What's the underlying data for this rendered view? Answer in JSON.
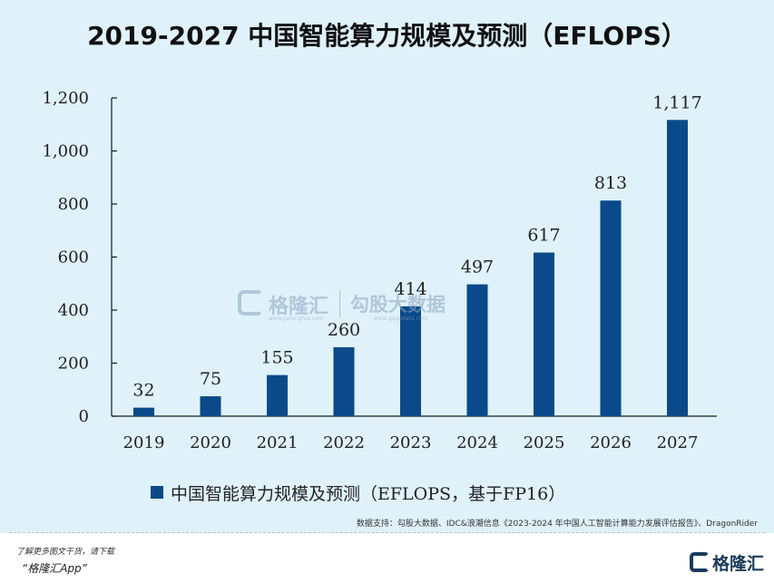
{
  "title": "2019-2027 中国智能算力规模及预测（EFLOPS）",
  "chart_data": {
    "type": "bar",
    "categories": [
      "2019",
      "2020",
      "2021",
      "2022",
      "2023",
      "2024",
      "2025",
      "2026",
      "2027"
    ],
    "series": [
      {
        "name": "中国智能算力规模及预测（EFLOPS，基于FP16）",
        "values": [
          32,
          75,
          155,
          260,
          414,
          497,
          617,
          813,
          1117
        ]
      }
    ],
    "value_labels": [
      "32",
      "75",
      "155",
      "260",
      "414",
      "497",
      "617",
      "813",
      "1,117"
    ],
    "yticks": [
      "0",
      "200",
      "400",
      "600",
      "800",
      "1,000",
      "1,200"
    ],
    "ytick_values": [
      0,
      200,
      400,
      600,
      800,
      1000,
      1200
    ],
    "ylim": [
      0,
      1200
    ],
    "grid": false,
    "legend_position": "bottom",
    "bar_color": "#0a4a8a"
  },
  "watermark": {
    "brand": "格隆汇",
    "partner": "勾股大数据",
    "url_left": "www.gelonghui.com",
    "url_right": "www.gogudata.com"
  },
  "legend": {
    "label": "中国智能算力规模及预测（EFLOPS，基于FP16）"
  },
  "source": "数据支持：勾股大数据、IDC&浪潮信息《2023-2024 年中国人工智能计算能力发展评估报告》、DragonRider",
  "footer": {
    "promo_line1": "了解更多图文干货，请下载",
    "promo_line2": "“格隆汇App”",
    "logo_text": "格隆汇"
  },
  "colors": {
    "background": "#dff2fa",
    "bar": "#0a4a8a",
    "axis": "#1a1a1a"
  }
}
